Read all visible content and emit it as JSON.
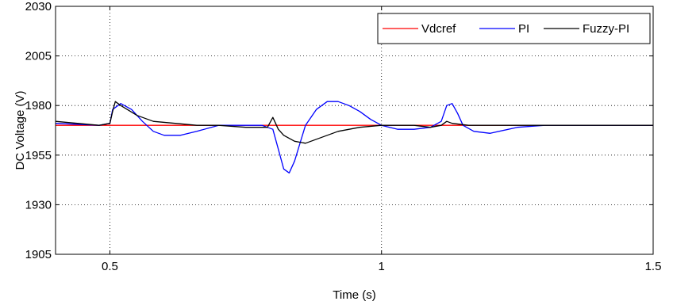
{
  "chart_data": {
    "type": "line",
    "xlabel": "Time (s)",
    "ylabel": "DC Voltage (V)",
    "xlim": [
      0.4,
      1.5
    ],
    "ylim": [
      1905,
      2030
    ],
    "xticks": [
      0.5,
      1,
      1.5
    ],
    "xtick_labels": [
      "0.5",
      "1",
      "1.5"
    ],
    "yticks": [
      1905,
      1930,
      1955,
      1980,
      2005,
      2030
    ],
    "ytick_labels": [
      "1905",
      "1930",
      "1955",
      "1980",
      "2005",
      "2030"
    ],
    "grid": "on (dotted)",
    "legend_position": "top-right",
    "series": [
      {
        "name": "Vdcref",
        "color": "#ff0000",
        "x": [
          0.4,
          1.5
        ],
        "y": [
          1970,
          1970
        ]
      },
      {
        "name": "PI",
        "color": "#0000ff",
        "x": [
          0.4,
          0.48,
          0.5,
          0.505,
          0.52,
          0.54,
          0.56,
          0.58,
          0.6,
          0.63,
          0.66,
          0.7,
          0.74,
          0.78,
          0.8,
          0.81,
          0.82,
          0.83,
          0.84,
          0.85,
          0.86,
          0.88,
          0.9,
          0.92,
          0.94,
          0.96,
          0.98,
          1.0,
          1.03,
          1.06,
          1.09,
          1.11,
          1.12,
          1.13,
          1.14,
          1.15,
          1.17,
          1.2,
          1.25,
          1.3,
          1.35,
          1.4,
          1.5
        ],
        "y": [
          1971,
          1970,
          1971,
          1978,
          1981,
          1978,
          1972,
          1967,
          1965,
          1965,
          1967,
          1970,
          1970,
          1970,
          1968,
          1958,
          1948,
          1946,
          1952,
          1961,
          1970,
          1978,
          1982,
          1982,
          1980,
          1977,
          1973,
          1970,
          1968,
          1968,
          1969,
          1972,
          1980,
          1981,
          1976,
          1970,
          1967,
          1966,
          1969,
          1970,
          1970,
          1970,
          1970
        ]
      },
      {
        "name": "Fuzzy-PI",
        "color": "#000000",
        "x": [
          0.4,
          0.44,
          0.48,
          0.5,
          0.505,
          0.51,
          0.52,
          0.55,
          0.58,
          0.62,
          0.66,
          0.7,
          0.75,
          0.79,
          0.8,
          0.81,
          0.82,
          0.84,
          0.86,
          0.88,
          0.92,
          0.96,
          1.0,
          1.06,
          1.09,
          1.11,
          1.12,
          1.13,
          1.16,
          1.2,
          1.3,
          1.4,
          1.5
        ],
        "y": [
          1972,
          1971,
          1970,
          1971,
          1977,
          1982,
          1980,
          1975,
          1972,
          1971,
          1970,
          1970,
          1969,
          1969,
          1974,
          1968,
          1965,
          1962,
          1961,
          1963,
          1967,
          1969,
          1970,
          1970,
          1969,
          1970,
          1972,
          1971,
          1970,
          1970,
          1970,
          1970,
          1970
        ]
      }
    ]
  }
}
